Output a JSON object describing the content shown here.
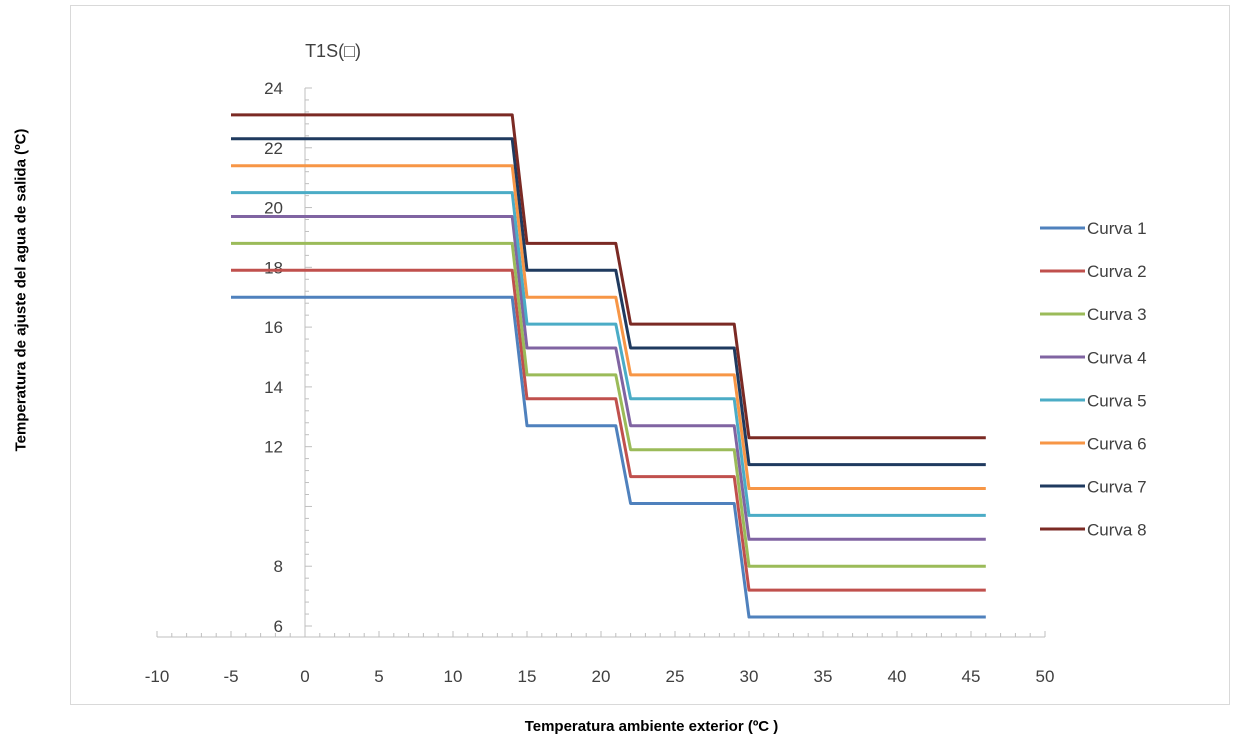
{
  "chart_data": {
    "type": "line",
    "title": "",
    "xlabel": "Temperatura ambiente exterior (ºC )",
    "ylabel": "Temperatura de ajuste del agua de salida (ºC)",
    "y_unit_label": "T1S(□)",
    "xlim": [
      -10,
      50
    ],
    "ylim": [
      6,
      24
    ],
    "x_ticks": [
      "-10",
      "-5",
      "0",
      "5",
      "10",
      "15",
      "20",
      "25",
      "30",
      "35",
      "40",
      "45",
      "50"
    ],
    "y_ticks": [
      "6",
      "8",
      "12",
      "14",
      "16",
      "18",
      "20",
      "22",
      "24"
    ],
    "grid": false,
    "legend_position": "right",
    "x_breakpoints": [
      -5,
      14,
      15,
      21,
      22,
      29,
      30,
      46
    ],
    "series": [
      {
        "name": "Curva 1",
        "color": "#4f81bd",
        "levels": [
          17,
          12.7,
          10.1,
          6.3
        ]
      },
      {
        "name": "Curva 2",
        "color": "#c0504d",
        "levels": [
          17.9,
          13.6,
          11,
          7.2
        ]
      },
      {
        "name": "Curva 3",
        "color": "#9bbb59",
        "levels": [
          18.8,
          14.4,
          11.9,
          8
        ]
      },
      {
        "name": "Curva 4",
        "color": "#8064a2",
        "levels": [
          19.7,
          15.3,
          12.7,
          8.9
        ]
      },
      {
        "name": "Curva 5",
        "color": "#4bacc6",
        "levels": [
          20.5,
          16.1,
          13.6,
          9.7
        ]
      },
      {
        "name": "Curva 6",
        "color": "#f79646",
        "levels": [
          21.4,
          17,
          14.4,
          10.6
        ]
      },
      {
        "name": "Curva 7",
        "color": "#1f3a5f",
        "levels": [
          22.3,
          17.9,
          15.3,
          11.4
        ]
      },
      {
        "name": "Curva 8",
        "color": "#7b2a24",
        "levels": [
          23.1,
          18.8,
          16.1,
          12.3
        ]
      }
    ]
  }
}
